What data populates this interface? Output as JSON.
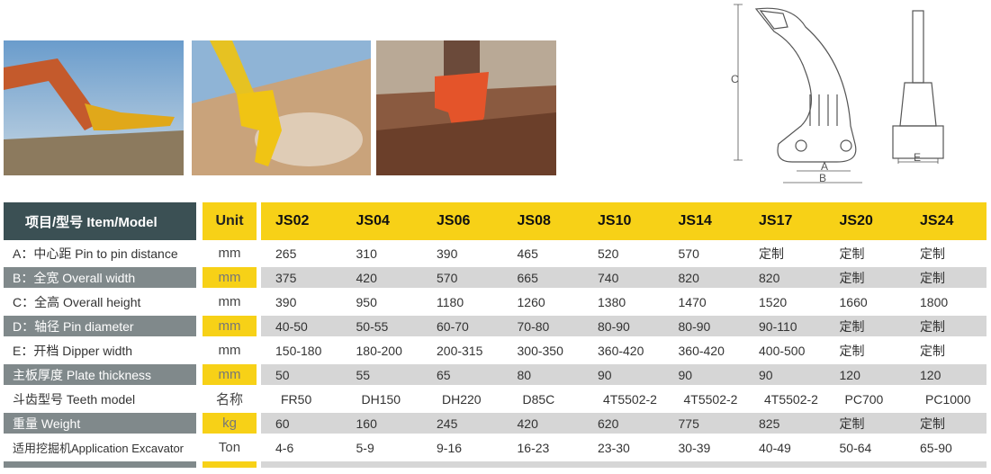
{
  "diagram": {
    "labels": [
      "C",
      "A",
      "B",
      "E"
    ]
  },
  "table": {
    "header": {
      "item": "项目/型号 Item/Model",
      "unit": "Unit",
      "models": [
        "JS02",
        "JS04",
        "JS06",
        "JS08",
        "JS10",
        "JS14",
        "JS17",
        "JS20",
        "JS24"
      ]
    },
    "rows": [
      {
        "label": "A：中心距 Pin to pin distance",
        "unit": "mm",
        "values": [
          "265",
          "310",
          "390",
          "465",
          "520",
          "570",
          "定制",
          "定制",
          "定制"
        ]
      },
      {
        "label": "B：全宽  Overall width",
        "unit": "mm",
        "values": [
          "375",
          "420",
          "570",
          "665",
          "740",
          "820",
          "820",
          "定制",
          "定制"
        ]
      },
      {
        "label": "C：全高  Overall height",
        "unit": "mm",
        "values": [
          "390",
          "950",
          "1180",
          "1260",
          "1380",
          "1470",
          "1520",
          "1660",
          "1800"
        ]
      },
      {
        "label": "D：轴径  Pin diameter",
        "unit": "mm",
        "values": [
          "40-50",
          "50-55",
          "60-70",
          "70-80",
          "80-90",
          "80-90",
          "90-110",
          "定制",
          "定制"
        ]
      },
      {
        "label": "E：开档  Dipper width",
        "unit": "mm",
        "values": [
          "150-180",
          "180-200",
          "200-315",
          "300-350",
          "360-420",
          "360-420",
          "400-500",
          "定制",
          "定制"
        ]
      },
      {
        "label": "主板厚度 Plate thickness",
        "unit": "mm",
        "values": [
          "50",
          "55",
          "65",
          "80",
          "90",
          "90",
          "90",
          "120",
          "120"
        ]
      },
      {
        "label": "斗齿型号 Teeth model",
        "unit": "名称",
        "values": [
          "FR50",
          "DH150",
          "DH220",
          "D85C",
          "4T5502-2",
          "4T5502-2",
          "4T5502-2",
          "PC700",
          "PC1000"
        ]
      },
      {
        "label": "重量  Weight",
        "unit": "kg",
        "values": [
          "60",
          "160",
          "245",
          "420",
          "620",
          "775",
          "825",
          "定制",
          "定制"
        ]
      },
      {
        "label": "适用挖掘机Application Excavator",
        "unit": "Ton",
        "values": [
          "4-6",
          "5-9",
          "9-16",
          "16-23",
          "23-30",
          "30-39",
          "40-49",
          "50-64",
          "65-90"
        ]
      }
    ]
  }
}
